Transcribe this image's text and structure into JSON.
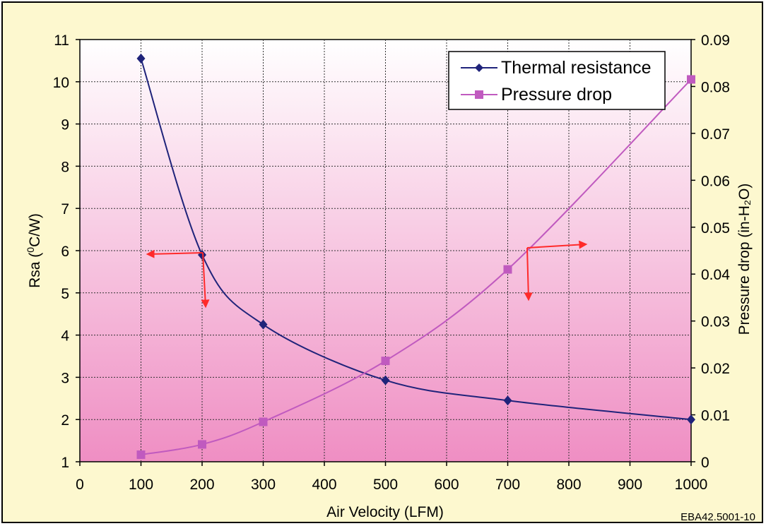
{
  "chart_data": {
    "type": "line",
    "xlabel": "Air Velocity (LFM)",
    "ylabel_left_main": "Rsa (",
    "ylabel_left_sup": "0",
    "ylabel_left_tail": "C/W)",
    "ylabel_right": "Pressure drop (in-H₂O)",
    "xlim": [
      0,
      1000
    ],
    "ylim_left": [
      1,
      11
    ],
    "ylim_right": [
      0,
      0.09
    ],
    "x_ticks": [
      "0",
      "100",
      "200",
      "300",
      "400",
      "500",
      "600",
      "700",
      "800",
      "900",
      "1000"
    ],
    "y_left_ticks": [
      "1",
      "2",
      "3",
      "4",
      "5",
      "6",
      "7",
      "8",
      "9",
      "10",
      "11"
    ],
    "y_right_ticks": [
      "0",
      "0.01",
      "0.02",
      "0.03",
      "0.04",
      "0.05",
      "0.06",
      "0.07",
      "0.08",
      "0.09"
    ],
    "grid": true,
    "legend_position": "top-right",
    "series": [
      {
        "name": "Thermal resistance",
        "axis": "left",
        "marker": "diamond",
        "color": "#1f237a",
        "x": [
          100,
          200,
          300,
          500,
          700,
          1000
        ],
        "y": [
          10.55,
          5.9,
          4.25,
          2.93,
          2.45,
          2.0
        ]
      },
      {
        "name": "Pressure drop",
        "axis": "right",
        "marker": "square",
        "color": "#c05abf",
        "x": [
          100,
          200,
          300,
          500,
          700,
          1000
        ],
        "y": [
          0.0015,
          0.0037,
          0.0085,
          0.0215,
          0.041,
          0.0815
        ]
      }
    ],
    "figure_code": "EBA42.5001-10"
  },
  "colors": {
    "background": "#fdf8cf",
    "plot_top": "#ffffff",
    "plot_bottom": "#ef8ec3",
    "arrow": "#ff2a2a"
  }
}
